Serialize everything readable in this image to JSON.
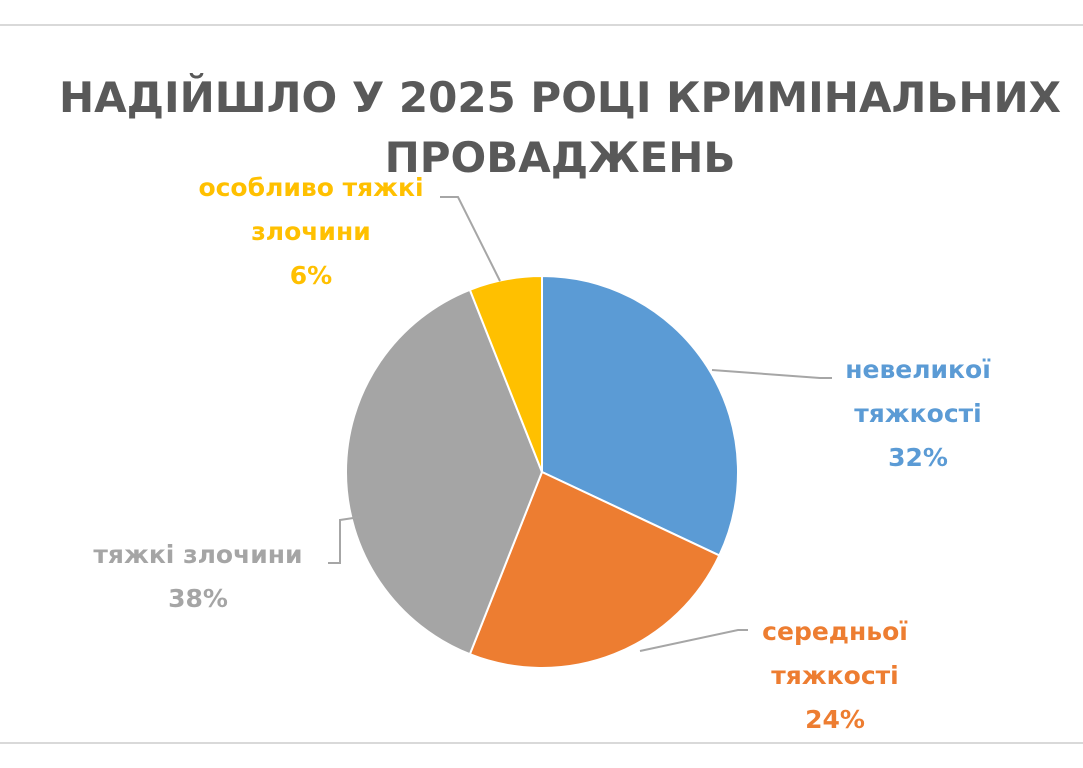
{
  "chart_data": {
    "type": "pie",
    "title_lines": [
      "НАДІЙШЛО У 2025 РОЦІ КРИМІНАЛЬНИХ",
      "ПРОВАДЖЕНЬ"
    ],
    "start_angle_deg": 0,
    "direction": "clockwise",
    "slices": [
      {
        "label_lines": [
          "невеликої",
          "тяжкості"
        ],
        "value": 32,
        "percent_label": "32%",
        "color": "#5b9bd5",
        "label_color": "#5b9bd5"
      },
      {
        "label_lines": [
          "середньої",
          "тяжкості"
        ],
        "value": 24,
        "percent_label": "24%",
        "color": "#ed7d31",
        "label_color": "#ed7d31"
      },
      {
        "label_lines": [
          "тяжкі злочини"
        ],
        "value": 38,
        "percent_label": "38%",
        "color": "#a5a5a5",
        "label_color": "#a5a5a5"
      },
      {
        "label_lines": [
          "особливо тяжкі",
          "злочини"
        ],
        "value": 6,
        "percent_label": "6%",
        "color": "#ffc000",
        "label_color": "#ffc000"
      }
    ],
    "legend": "none",
    "data_labels": "outside with leader lines"
  }
}
